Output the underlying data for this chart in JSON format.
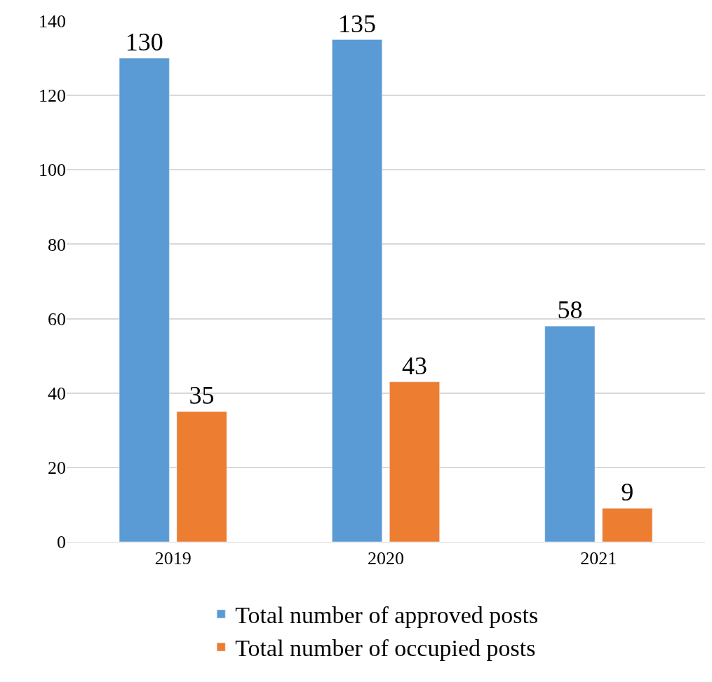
{
  "chart_data": {
    "type": "bar",
    "categories": [
      "2019",
      "2020",
      "2021"
    ],
    "series": [
      {
        "name": "Total number of approved posts",
        "color": "#5b9bd5",
        "values": [
          130,
          135,
          58
        ]
      },
      {
        "name": "Total number of occupied posts",
        "color": "#ed7d31",
        "values": [
          35,
          43,
          9
        ]
      }
    ],
    "ylim": [
      0,
      140
    ],
    "yticks": [
      0,
      20,
      40,
      60,
      80,
      100,
      120,
      140
    ],
    "grid": "y",
    "legend": "bottom",
    "data_labels": true
  }
}
